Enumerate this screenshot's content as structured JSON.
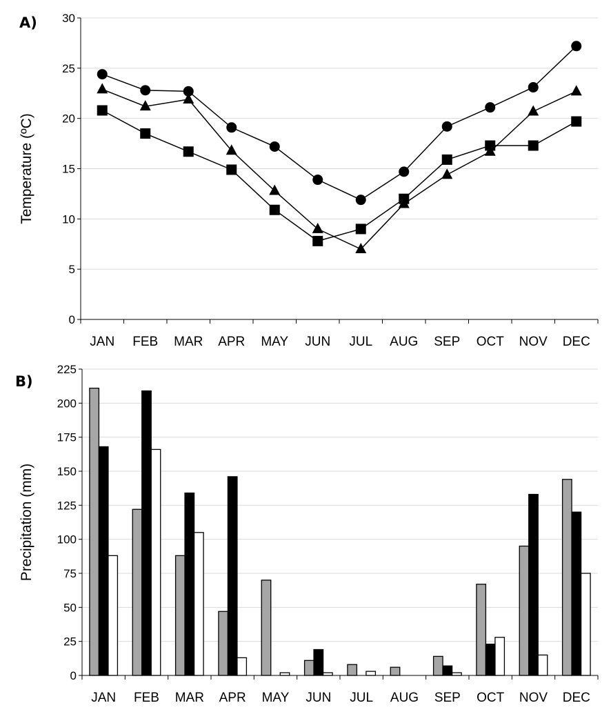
{
  "chart_data": [
    {
      "type": "line",
      "panel_label": "A)",
      "ylabel": "Temperature (ºC)",
      "xlabel": "",
      "categories": [
        "JAN",
        "FEB",
        "MAR",
        "APR",
        "MAY",
        "JUN",
        "JUL",
        "AUG",
        "SEP",
        "OCT",
        "NOV",
        "DEC"
      ],
      "ylim": [
        0,
        30
      ],
      "yticks": [
        0,
        5,
        10,
        15,
        20,
        25,
        30
      ],
      "grid": true,
      "series": [
        {
          "marker": "circle",
          "color": "#000000",
          "values": [
            24.4,
            22.8,
            22.7,
            19.1,
            17.2,
            13.9,
            11.9,
            14.7,
            19.2,
            21.1,
            23.1,
            27.2
          ]
        },
        {
          "marker": "triangle",
          "color": "#000000",
          "values": [
            22.9,
            21.2,
            21.9,
            16.8,
            12.8,
            9.0,
            7.0,
            11.5,
            14.4,
            16.7,
            20.7,
            22.7
          ]
        },
        {
          "marker": "square",
          "color": "#000000",
          "values": [
            20.8,
            18.5,
            16.7,
            14.9,
            10.9,
            7.8,
            9.0,
            12.0,
            15.9,
            17.3,
            17.3,
            19.7
          ]
        }
      ]
    },
    {
      "type": "bar",
      "panel_label": "B)",
      "ylabel": "Precipitation (mm)",
      "xlabel": "",
      "categories": [
        "JAN",
        "FEB",
        "MAR",
        "APR",
        "MAY",
        "JUN",
        "JUL",
        "AUG",
        "SEP",
        "OCT",
        "NOV",
        "DEC"
      ],
      "ylim": [
        0,
        225
      ],
      "yticks": [
        0,
        25,
        50,
        75,
        100,
        125,
        150,
        175,
        200,
        225
      ],
      "grid": true,
      "series": [
        {
          "color": "#a6a6a6",
          "values": [
            211,
            122,
            88,
            47,
            70,
            11,
            8,
            6,
            14,
            67,
            95,
            144
          ]
        },
        {
          "color": "#000000",
          "values": [
            168,
            209,
            134,
            146,
            0,
            19,
            0,
            0,
            7,
            23,
            133,
            120
          ]
        },
        {
          "color": "#ffffff",
          "values": [
            88,
            166,
            105,
            13,
            2,
            2,
            3,
            0,
            2,
            28,
            15,
            75
          ]
        }
      ]
    }
  ]
}
